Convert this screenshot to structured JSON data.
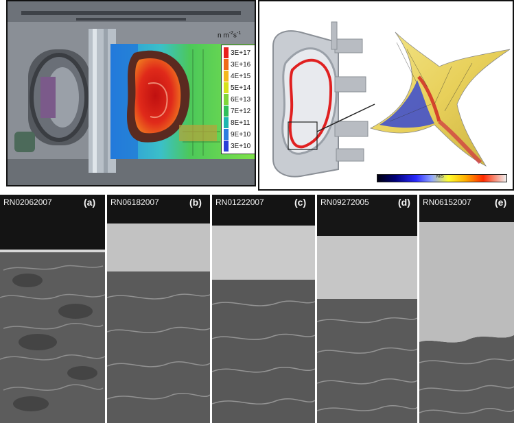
{
  "flux_legend": {
    "unit_base": "n m",
    "unit_exp1": "-2",
    "unit_mid": "s",
    "unit_exp2": "-1",
    "entries": [
      {
        "label": "3E+17",
        "color": "#e8201e"
      },
      {
        "label": "3E+16",
        "color": "#f06a18"
      },
      {
        "label": "4E+15",
        "color": "#f4b81e"
      },
      {
        "label": "5E+14",
        "color": "#d6e21c"
      },
      {
        "label": "6E+13",
        "color": "#7fd63a"
      },
      {
        "label": "7E+12",
        "color": "#2fbf5a"
      },
      {
        "label": "8E+11",
        "color": "#1eb6b0"
      },
      {
        "label": "9E+10",
        "color": "#2d7de0"
      },
      {
        "label": "3E+10",
        "color": "#2a3ed8"
      }
    ]
  },
  "velocity_colorbar": {
    "label": "M/S"
  },
  "sem_panels": [
    {
      "sample": "RN02062007",
      "letter": "(a)"
    },
    {
      "sample": "RN06182007",
      "letter": "(b)"
    },
    {
      "sample": "RN01222007",
      "letter": "(c)"
    },
    {
      "sample": "RN09272005",
      "letter": "(d)"
    },
    {
      "sample": "RN06152007",
      "letter": "(e)"
    }
  ]
}
